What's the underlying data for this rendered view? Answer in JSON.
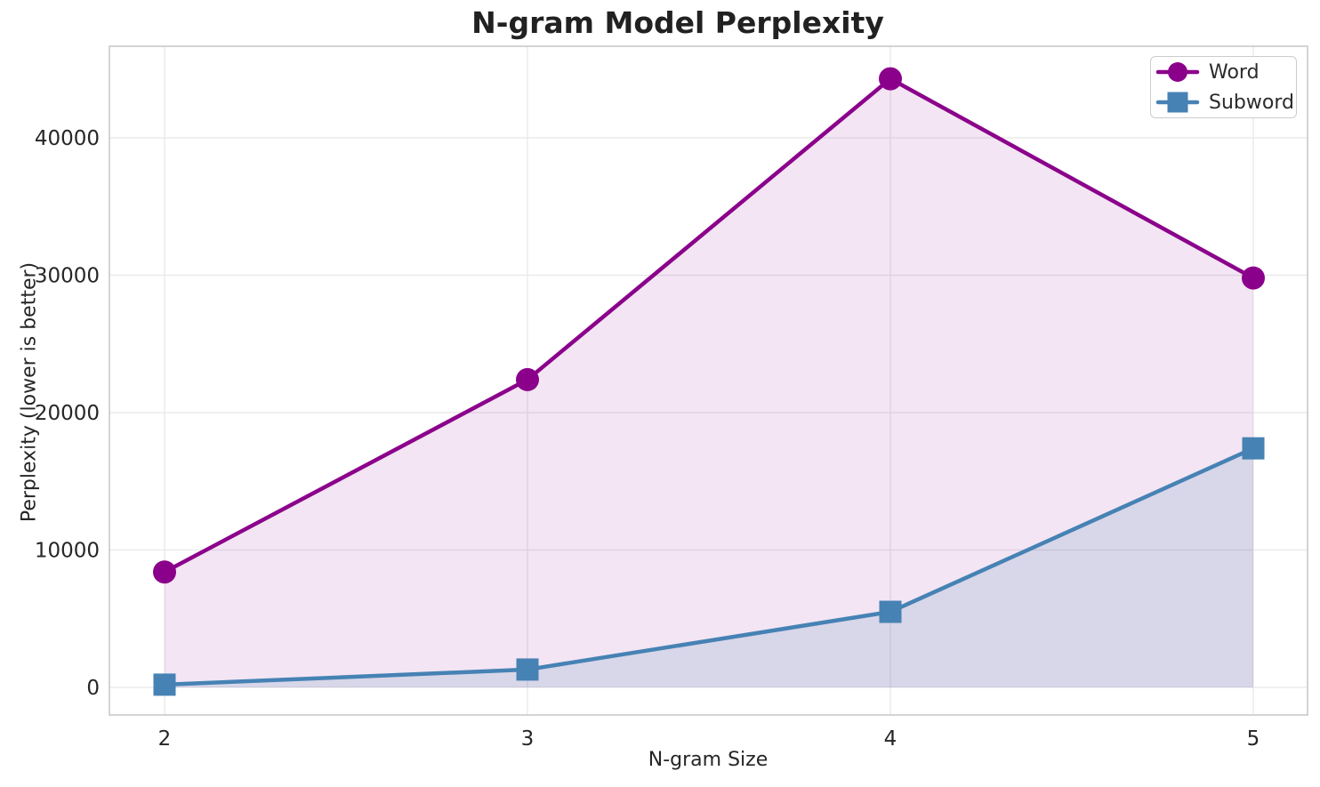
{
  "chart_data": {
    "type": "line",
    "title": "N-gram Model Perplexity",
    "xlabel": "N-gram Size",
    "ylabel": "Perplexity (lower is better)",
    "x": [
      2,
      3,
      4,
      5
    ],
    "series": [
      {
        "name": "Word",
        "color": "#8B008B",
        "fill_color": "rgba(139,0,139,0.10)",
        "marker": "circle",
        "values": [
          8400,
          22400,
          44300,
          29800
        ]
      },
      {
        "name": "Subword",
        "color": "#4682B4",
        "fill_color": "rgba(70,130,180,0.15)",
        "marker": "square",
        "values": [
          200,
          1300,
          5500,
          17400
        ]
      }
    ],
    "x_ticks": [
      2,
      3,
      4,
      5
    ],
    "y_ticks": [
      0,
      10000,
      20000,
      30000,
      40000
    ],
    "xlim": [
      1.85,
      5.15
    ],
    "ylim": [
      -2000,
      46500
    ],
    "grid": true,
    "area_fill": true,
    "legend_position": "upper right"
  },
  "style": {
    "background": "#ffffff",
    "grid_color": "#e8e8e8",
    "spine_color": "#c9c9c9",
    "text_color": "#262626"
  }
}
